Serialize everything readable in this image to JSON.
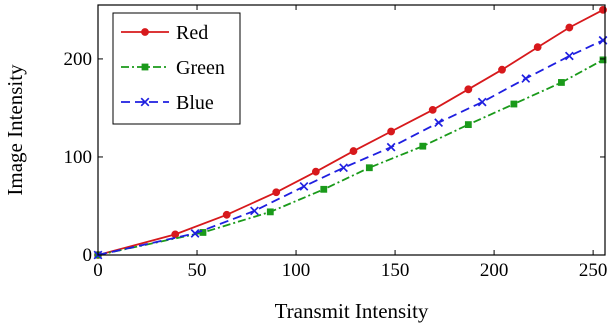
{
  "chart_data": {
    "type": "line",
    "title": "",
    "xlabel": "Transmit Intensity",
    "ylabel": "Image Intensity",
    "xlim": [
      0,
      256
    ],
    "ylim": [
      0,
      255
    ],
    "x_ticks": [
      0,
      50,
      100,
      150,
      200,
      250
    ],
    "y_ticks": [
      0,
      100,
      200
    ],
    "grid": false,
    "legend_position": "top-left",
    "series": [
      {
        "name": "Red",
        "color": "#d7191c",
        "line_style": "solid",
        "marker": "circle",
        "x": [
          0,
          39,
          65,
          90,
          110,
          129,
          148,
          169,
          187,
          204,
          222,
          238,
          255
        ],
        "y": [
          0,
          21,
          41,
          64,
          85,
          106,
          126,
          148,
          169,
          189,
          212,
          232,
          250
        ]
      },
      {
        "name": "Green",
        "color": "#1a9a1a",
        "line_style": "dashdot",
        "marker": "square",
        "x": [
          0,
          53,
          87,
          114,
          137,
          164,
          187,
          210,
          234,
          255
        ],
        "y": [
          0,
          23,
          44,
          67,
          89,
          111,
          133,
          154,
          176,
          199
        ]
      },
      {
        "name": "Blue",
        "color": "#1f1fe0",
        "line_style": "dashed",
        "marker": "x",
        "x": [
          0,
          49,
          79,
          104,
          124,
          148,
          172,
          194,
          216,
          238,
          255
        ],
        "y": [
          0,
          22,
          45,
          70,
          89,
          110,
          135,
          156,
          180,
          203,
          219
        ]
      }
    ]
  }
}
